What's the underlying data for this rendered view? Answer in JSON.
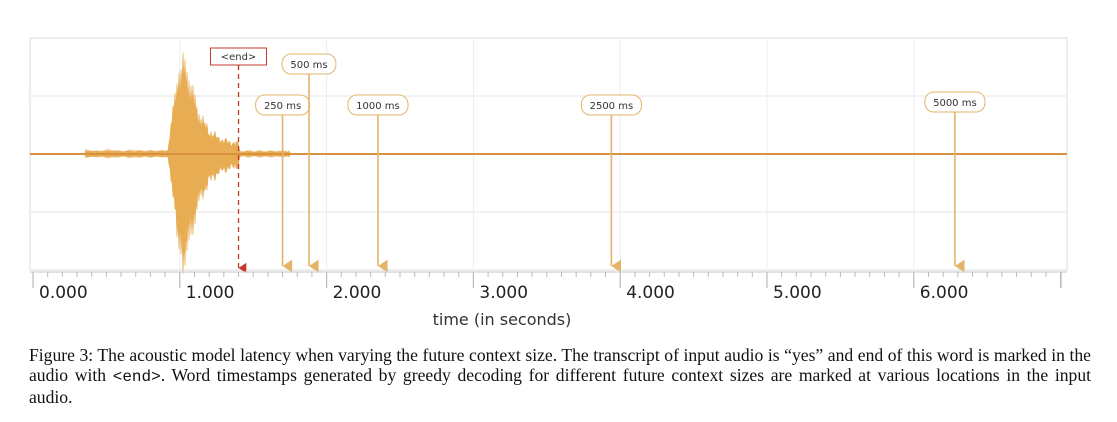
{
  "chart_data": {
    "type": "line",
    "xlabel": "time (in seconds)",
    "xlim": [
      0.0,
      7.0
    ],
    "ticks": [
      "0.000",
      "1.000",
      "2.000",
      "3.000",
      "4.000",
      "5.000",
      "6.000"
    ],
    "end_marker": {
      "label": "<end>",
      "time": 1.4
    },
    "timestamps": [
      {
        "label": "250 ms",
        "time": 1.7
      },
      {
        "label": "500 ms",
        "time": 1.88
      },
      {
        "label": "1000 ms",
        "time": 2.35
      },
      {
        "label": "2500 ms",
        "time": 3.94
      },
      {
        "label": "5000 ms",
        "time": 6.28
      }
    ],
    "waveform_color": "#e7a84a",
    "baseline_color": "#d9913f",
    "marker_color": "#e2b56a",
    "end_color": "#c0392b"
  },
  "caption": {
    "prefix": "Figure 3: The acoustic model latency when varying the future context size. The transcript of input audio is “yes” and end of this word is marked in the audio with ",
    "code": "<end>",
    "suffix": ". Word timestamps generated by greedy decoding for different future context sizes are marked at various locations in the input audio."
  }
}
